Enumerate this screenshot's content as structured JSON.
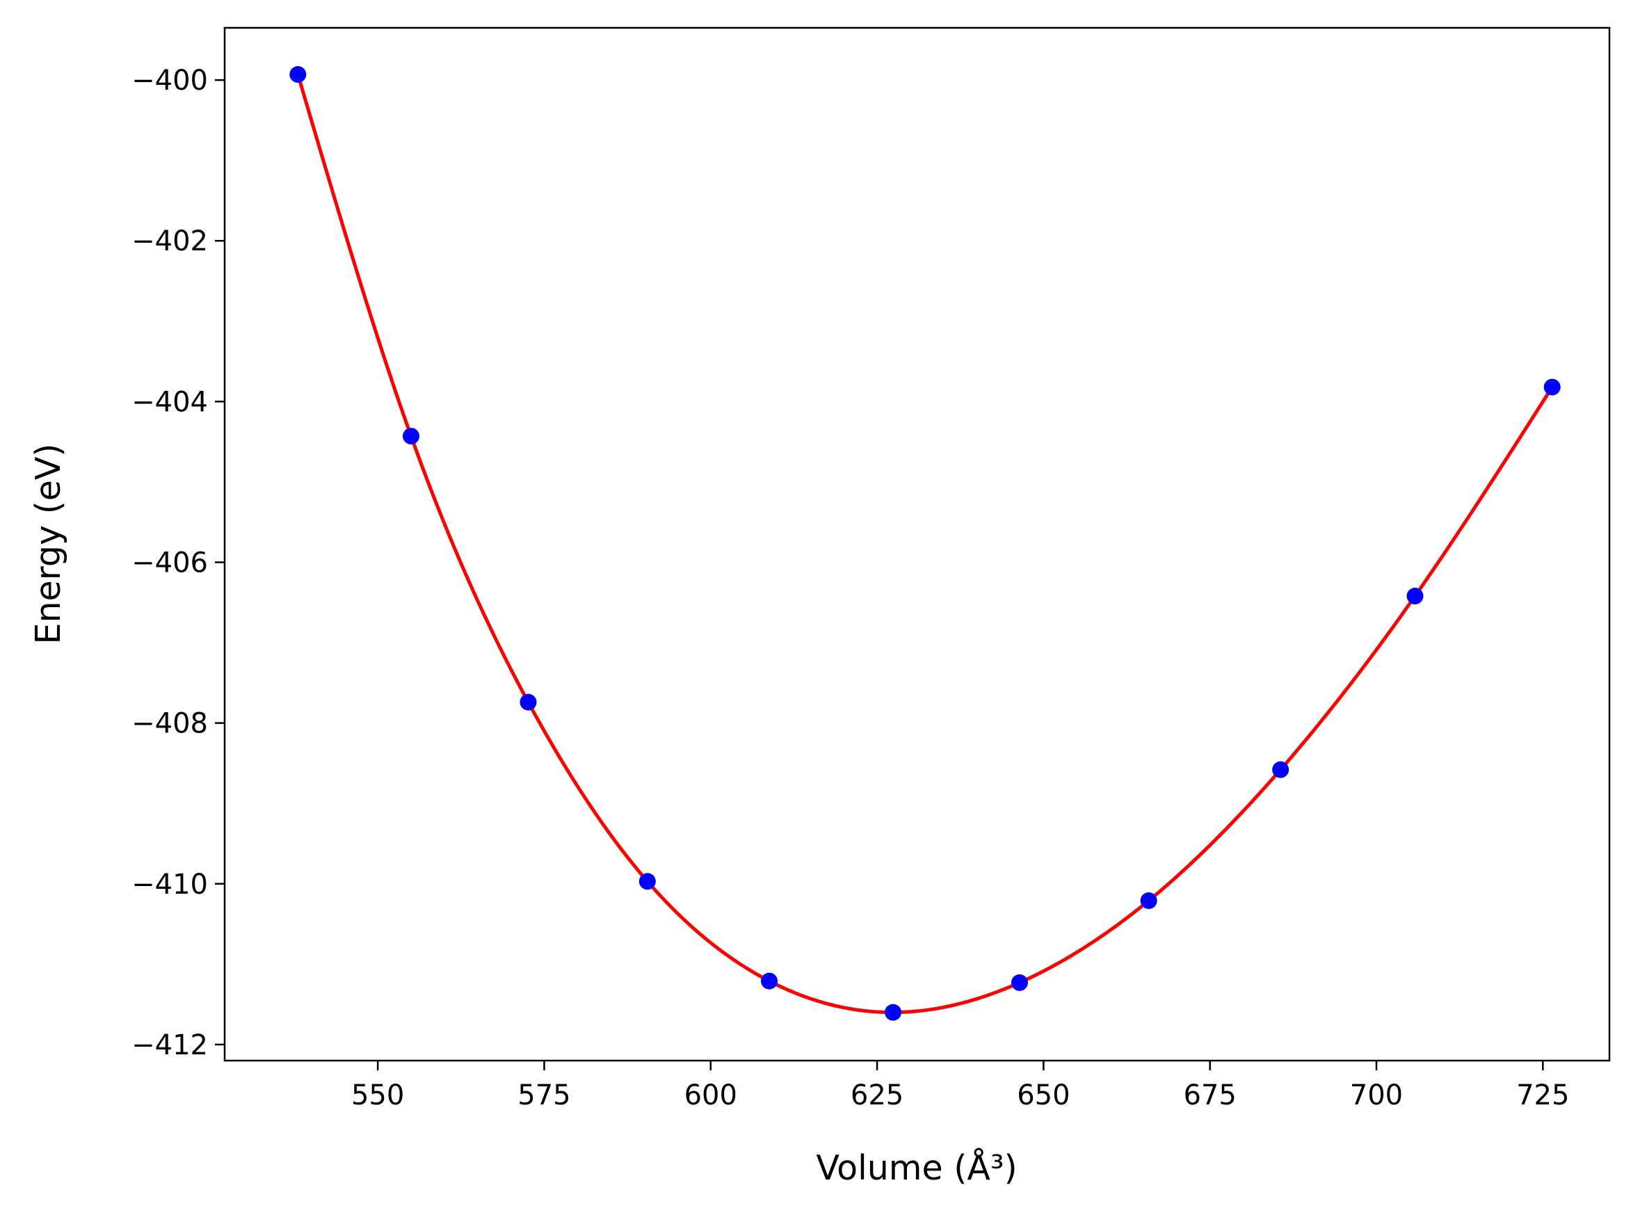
{
  "chart_data": {
    "type": "scatter",
    "xlabel": "Volume (Å³)",
    "ylabel": "Energy (eV)",
    "xlim": [
      527,
      735
    ],
    "ylim": [
      -412.2,
      -399.35
    ],
    "xticks": [
      550,
      575,
      600,
      625,
      650,
      675,
      700,
      725
    ],
    "yticks": [
      -400,
      -402,
      -404,
      -406,
      -408,
      -410,
      -412
    ],
    "xtick_labels": [
      "550",
      "575",
      "600",
      "625",
      "650",
      "675",
      "700",
      "725"
    ],
    "ytick_labels": [
      "−400",
      "−402",
      "−404",
      "−406",
      "−408",
      "−410",
      "−412"
    ],
    "grid": false,
    "series": [
      {
        "type": "scatter",
        "color": "#0000ff",
        "x": [
          538.0,
          555.0,
          572.6,
          590.5,
          608.8,
          627.4,
          646.4,
          665.8,
          685.6,
          705.8,
          726.4
        ],
        "y": [
          -399.93,
          -404.43,
          -407.74,
          -409.97,
          -411.21,
          -411.6,
          -411.23,
          -410.21,
          -408.58,
          -406.42,
          -403.82
        ]
      },
      {
        "type": "line",
        "color": "#ff0000",
        "fit": "curve through data points"
      }
    ]
  }
}
